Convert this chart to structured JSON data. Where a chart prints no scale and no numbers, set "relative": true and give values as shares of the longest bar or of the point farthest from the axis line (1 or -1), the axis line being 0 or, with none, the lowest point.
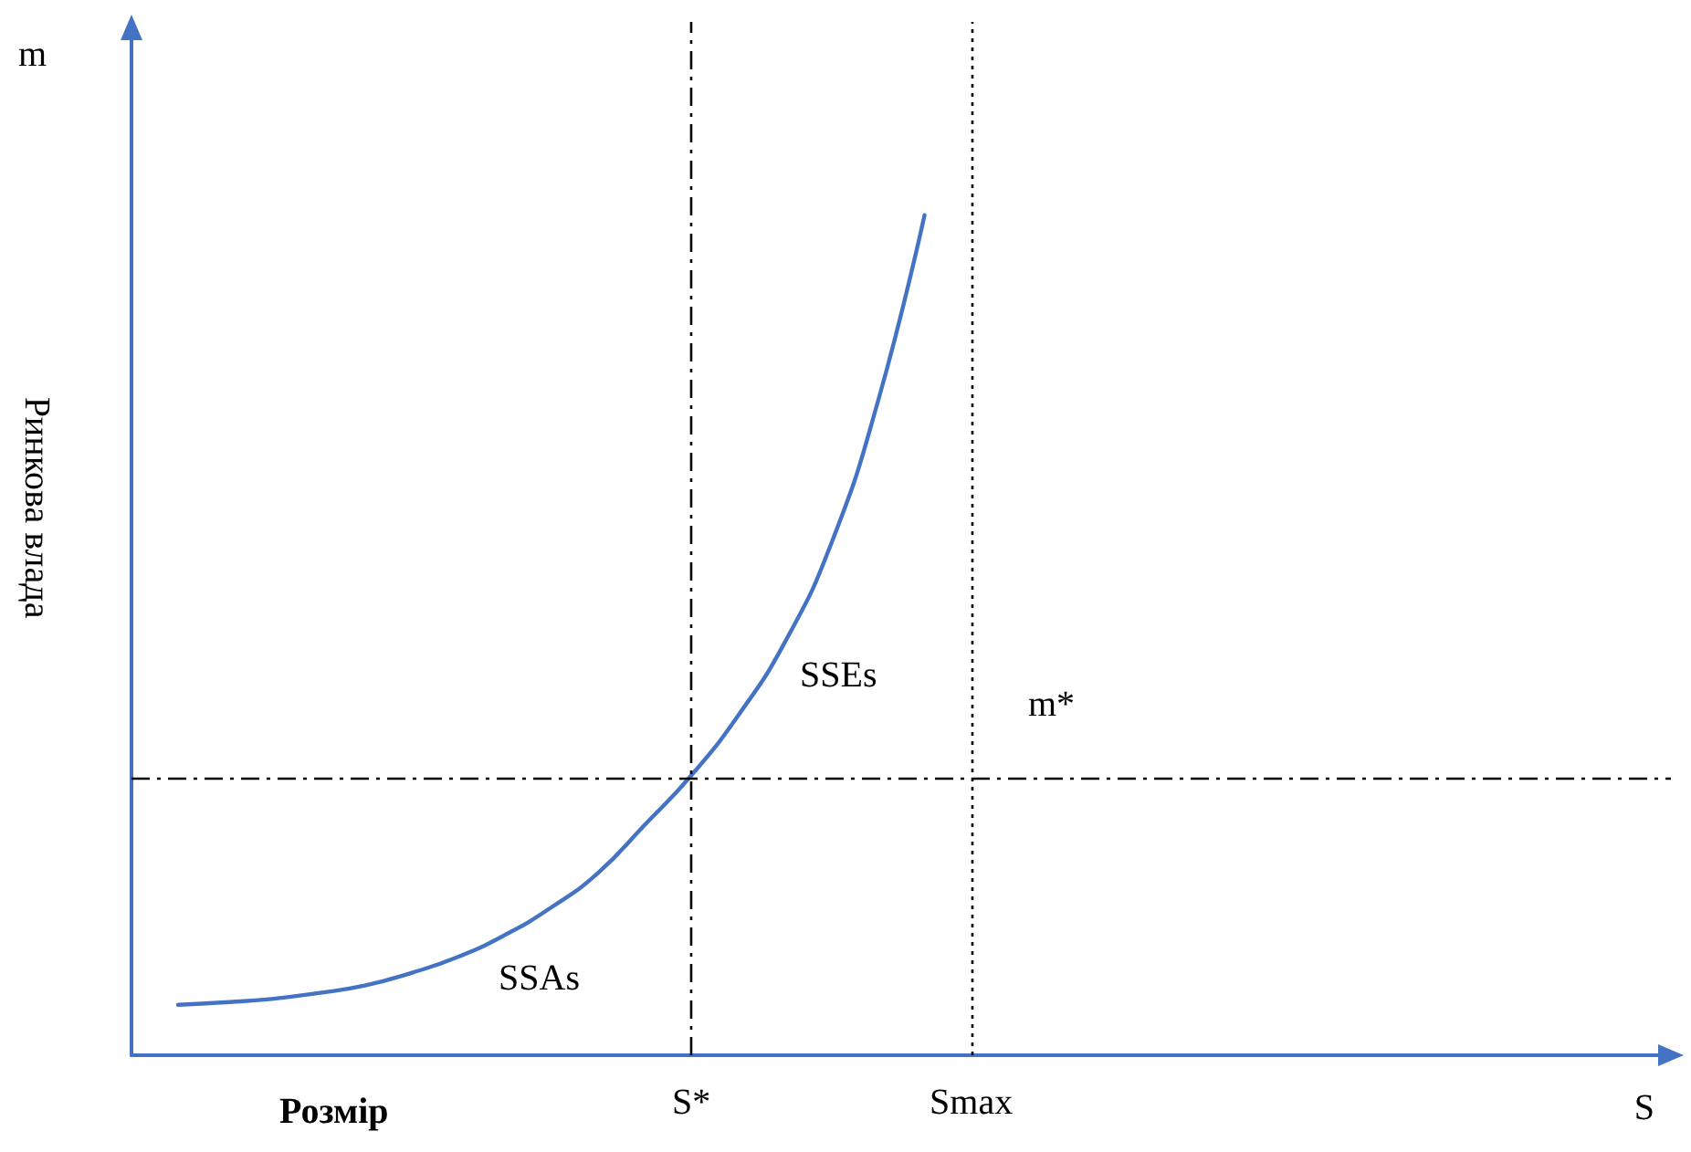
{
  "chart_data": {
    "type": "line",
    "relative": true,
    "xlabel": "Розмір",
    "ylabel": "Ринкова влада",
    "categories": [
      null,
      null,
      null,
      null,
      null,
      null,
      null,
      null,
      null,
      null,
      null,
      null,
      "S*",
      null,
      null,
      null,
      null,
      null,
      "Smax",
      null,
      null,
      null,
      null,
      null,
      null,
      null,
      null,
      null,
      null,
      null,
      null,
      null,
      null,
      null
    ],
    "series": [
      {
        "color": "#4472c4",
        "values": [
          null,
          0.06,
          0.063,
          0.067,
          0.074,
          0.083,
          0.098,
          0.117,
          0.143,
          0.176,
          0.217,
          0.274,
          0.333,
          0.404,
          0.491,
          0.609,
          0.778,
          1,
          null,
          null,
          null,
          null,
          null,
          null,
          null,
          null,
          null,
          null,
          null,
          null,
          null,
          null,
          null,
          null
        ]
      }
    ],
    "ref_lines": [
      {
        "axis": "y",
        "value": 0.33,
        "line_style": "dashed",
        "color": "#000000"
      },
      {
        "axis": "x",
        "value": "S*",
        "line_style": "dashed",
        "color": "#000000"
      },
      {
        "axis": "x",
        "value": "Smax",
        "line_style": "dotted",
        "color": "#000000"
      }
    ],
    "annotations": [
      "m",
      "S",
      "SSEs",
      "SSAs",
      "m*"
    ],
    "grid": false,
    "marker": "none",
    "line_style": "solid"
  }
}
